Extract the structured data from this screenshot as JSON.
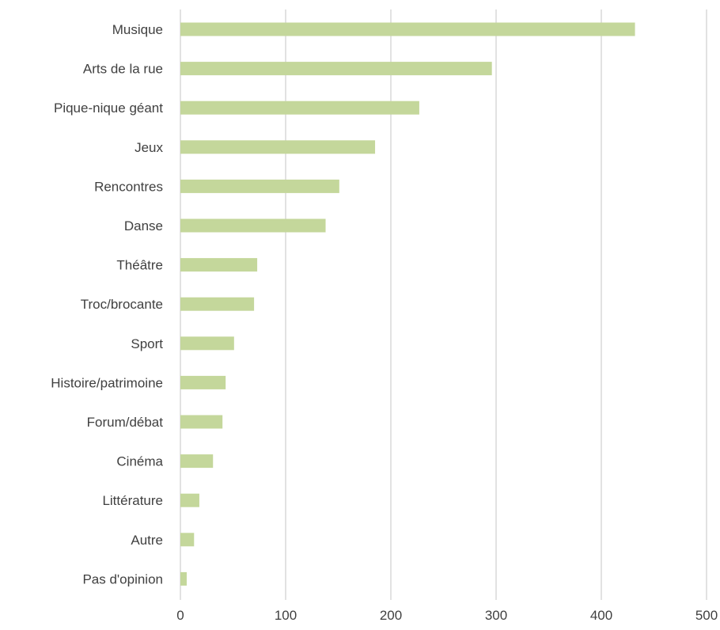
{
  "chart_data": {
    "type": "bar",
    "orientation": "horizontal",
    "categories": [
      "Musique",
      "Arts de la rue",
      "Pique-nique géant",
      "Jeux",
      "Rencontres",
      "Danse",
      "Théâtre",
      "Troc/brocante",
      "Sport",
      "Histoire/patrimoine",
      "Forum/débat",
      "Cinéma",
      "Littérature",
      "Autre",
      "Pas d'opinion"
    ],
    "values": [
      432,
      296,
      227,
      185,
      151,
      138,
      73,
      70,
      51,
      43,
      40,
      31,
      18,
      13,
      6
    ],
    "title": "",
    "xlabel": "",
    "ylabel": "",
    "xlim": [
      0,
      500
    ],
    "xticks": [
      "0",
      "100",
      "200",
      "300",
      "400",
      "500"
    ],
    "grid": "vertical",
    "legend": "none",
    "bar_color": "#c4d79b",
    "grid_color": "#d9d9d9",
    "text_color": "#404040"
  }
}
